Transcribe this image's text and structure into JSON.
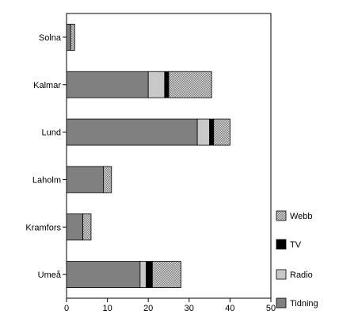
{
  "chart_data": {
    "type": "bar",
    "orientation": "horizontal",
    "stacked": true,
    "title": "",
    "xlabel": "",
    "ylabel": "",
    "xlim": [
      0,
      50
    ],
    "x_ticks": [
      0,
      10,
      20,
      30,
      40,
      50
    ],
    "grid": false,
    "legend_position": "right",
    "categories": [
      "Solna",
      "Kalmar",
      "Lund",
      "Laholm",
      "Kramfors",
      "Umeå"
    ],
    "series": [
      {
        "name": "Tidning",
        "color": "#808080",
        "pattern": "solid",
        "values": [
          1,
          20,
          32,
          9,
          4,
          18
        ]
      },
      {
        "name": "Radio",
        "color": "#c8c8c8",
        "pattern": "solid",
        "values": [
          0,
          4,
          3,
          0,
          0,
          1.5
        ]
      },
      {
        "name": "TV",
        "color": "#000000",
        "pattern": "solid",
        "values": [
          0,
          1,
          1,
          0,
          0,
          1.5
        ]
      },
      {
        "name": "Webb",
        "color": "#b4b4b4",
        "pattern": "checker",
        "values": [
          1,
          10.5,
          4,
          2,
          2,
          7
        ]
      }
    ],
    "legend_order": [
      "Webb",
      "TV",
      "Radio",
      "Tidning"
    ]
  }
}
